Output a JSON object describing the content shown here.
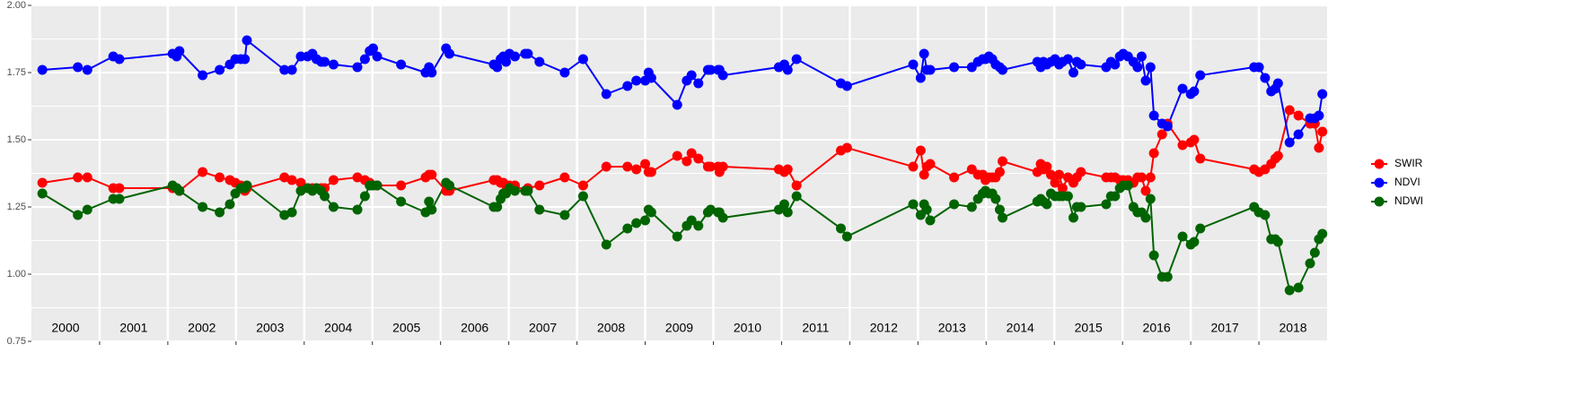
{
  "chart_data": {
    "type": "line",
    "xlim": [
      2000,
      2019
    ],
    "xticks": [
      2001,
      2002,
      2003,
      2004,
      2005,
      2006,
      2007,
      2008,
      2009,
      2010,
      2011,
      2012,
      2013,
      2014,
      2015,
      2016,
      2017,
      2018
    ],
    "ylim": [
      0.75,
      2.0
    ],
    "yticks": [
      {
        "value": 0.75,
        "label": "0.75"
      },
      {
        "value": 1.0,
        "label": "1.00"
      },
      {
        "value": 1.25,
        "label": "1.25"
      },
      {
        "value": 1.5,
        "label": "1.50"
      },
      {
        "value": 1.75,
        "label": "1.75"
      },
      {
        "value": 2.0,
        "label": "2.00"
      }
    ],
    "grid": true,
    "legend": "right",
    "annotations": [
      {
        "text": "2000",
        "x": 2000.5
      },
      {
        "text": "2001",
        "x": 2001.5
      },
      {
        "text": "2002",
        "x": 2002.5
      },
      {
        "text": "2003",
        "x": 2003.5
      },
      {
        "text": "2004",
        "x": 2004.5
      },
      {
        "text": "2005",
        "x": 2005.5
      },
      {
        "text": "2006",
        "x": 2006.5
      },
      {
        "text": "2007",
        "x": 2007.5
      },
      {
        "text": "2008",
        "x": 2008.5
      },
      {
        "text": "2009",
        "x": 2009.5
      },
      {
        "text": "2010",
        "x": 2010.5
      },
      {
        "text": "2011",
        "x": 2011.5
      },
      {
        "text": "2012",
        "x": 2012.5
      },
      {
        "text": "2013",
        "x": 2013.5
      },
      {
        "text": "2014",
        "x": 2014.5
      },
      {
        "text": "2015",
        "x": 2015.5
      },
      {
        "text": "2016",
        "x": 2016.5
      },
      {
        "text": "2017",
        "x": 2017.5
      },
      {
        "text": "2018",
        "x": 2018.5
      }
    ],
    "x": [
      2000.16,
      2000.68,
      2000.82,
      2001.2,
      2001.29,
      2002.07,
      2002.13,
      2002.17,
      2002.51,
      2002.76,
      2002.91,
      2002.99,
      2003.07,
      2003.13,
      2003.16,
      2003.71,
      2003.82,
      2003.95,
      2004.05,
      2004.12,
      2004.18,
      2004.25,
      2004.3,
      2004.43,
      2004.78,
      2004.89,
      2004.96,
      2005.01,
      2005.07,
      2005.42,
      2005.78,
      2005.83,
      2005.87,
      2006.08,
      2006.13,
      2006.78,
      2006.83,
      2006.88,
      2006.92,
      2006.96,
      2007.01,
      2007.09,
      2007.24,
      2007.28,
      2007.45,
      2007.82,
      2008.09,
      2008.43,
      2008.74,
      2008.87,
      2009.0,
      2009.05,
      2009.09,
      2009.47,
      2009.61,
      2009.68,
      2009.78,
      2009.92,
      2009.96,
      2010.07,
      2010.09,
      2010.14,
      2010.96,
      2011.04,
      2011.09,
      2011.22,
      2011.87,
      2011.96,
      2012.93,
      2013.04,
      2013.09,
      2013.13,
      2013.18,
      2013.53,
      2013.79,
      2013.88,
      2013.95,
      2013.99,
      2014.04,
      2014.09,
      2014.14,
      2014.2,
      2014.24,
      2014.75,
      2014.8,
      2014.84,
      2014.89,
      2014.95,
      2015.01,
      2015.07,
      2015.12,
      2015.2,
      2015.28,
      2015.33,
      2015.39,
      2015.76,
      2015.83,
      2015.89,
      2015.96,
      2016.01,
      2016.08,
      2016.16,
      2016.22,
      2016.28,
      2016.34,
      2016.41,
      2016.46,
      2016.58,
      2016.66,
      2016.88,
      2017.0,
      2017.05,
      2017.14,
      2017.93,
      2018.0,
      2018.09,
      2018.18,
      2018.24,
      2018.28,
      2018.45,
      2018.58,
      2018.75,
      2018.82,
      2018.88,
      2018.93
    ],
    "series": [
      {
        "name": "SWIR",
        "color": "#ff0000",
        "values": [
          1.34,
          1.36,
          1.36,
          1.32,
          1.32,
          1.32,
          1.32,
          1.31,
          1.38,
          1.36,
          1.35,
          1.34,
          1.33,
          1.31,
          1.32,
          1.36,
          1.35,
          1.34,
          1.32,
          1.32,
          1.32,
          1.32,
          1.32,
          1.35,
          1.36,
          1.35,
          1.34,
          1.33,
          1.33,
          1.33,
          1.36,
          1.37,
          1.37,
          1.31,
          1.31,
          1.35,
          1.35,
          1.34,
          1.34,
          1.33,
          1.33,
          1.33,
          1.31,
          1.32,
          1.33,
          1.36,
          1.33,
          1.4,
          1.4,
          1.39,
          1.41,
          1.38,
          1.38,
          1.44,
          1.42,
          1.45,
          1.43,
          1.4,
          1.4,
          1.4,
          1.38,
          1.4,
          1.39,
          1.38,
          1.39,
          1.33,
          1.46,
          1.47,
          1.4,
          1.46,
          1.37,
          1.4,
          1.41,
          1.36,
          1.39,
          1.37,
          1.37,
          1.35,
          1.36,
          1.36,
          1.36,
          1.38,
          1.42,
          1.38,
          1.41,
          1.39,
          1.4,
          1.37,
          1.34,
          1.37,
          1.32,
          1.36,
          1.34,
          1.36,
          1.38,
          1.36,
          1.36,
          1.36,
          1.35,
          1.35,
          1.35,
          1.34,
          1.36,
          1.36,
          1.31,
          1.36,
          1.45,
          1.52,
          1.56,
          1.48,
          1.49,
          1.5,
          1.43,
          1.39,
          1.38,
          1.39,
          1.41,
          1.43,
          1.44,
          1.61,
          1.59,
          1.56,
          1.56,
          1.47,
          1.53
        ]
      },
      {
        "name": "NDVI",
        "color": "#0000ff",
        "values": [
          1.76,
          1.77,
          1.76,
          1.81,
          1.8,
          1.82,
          1.81,
          1.83,
          1.74,
          1.76,
          1.78,
          1.8,
          1.8,
          1.8,
          1.87,
          1.76,
          1.76,
          1.81,
          1.81,
          1.82,
          1.8,
          1.79,
          1.79,
          1.78,
          1.77,
          1.8,
          1.83,
          1.84,
          1.81,
          1.78,
          1.75,
          1.77,
          1.75,
          1.84,
          1.82,
          1.78,
          1.77,
          1.8,
          1.81,
          1.79,
          1.82,
          1.81,
          1.82,
          1.82,
          1.79,
          1.75,
          1.8,
          1.67,
          1.7,
          1.72,
          1.72,
          1.75,
          1.73,
          1.63,
          1.72,
          1.74,
          1.71,
          1.76,
          1.76,
          1.76,
          1.76,
          1.74,
          1.77,
          1.78,
          1.76,
          1.8,
          1.71,
          1.7,
          1.78,
          1.73,
          1.82,
          1.76,
          1.76,
          1.77,
          1.77,
          1.79,
          1.8,
          1.8,
          1.81,
          1.8,
          1.78,
          1.77,
          1.76,
          1.79,
          1.77,
          1.79,
          1.78,
          1.79,
          1.8,
          1.78,
          1.79,
          1.8,
          1.75,
          1.79,
          1.78,
          1.77,
          1.79,
          1.78,
          1.81,
          1.82,
          1.81,
          1.79,
          1.77,
          1.81,
          1.72,
          1.77,
          1.59,
          1.56,
          1.55,
          1.69,
          1.67,
          1.68,
          1.74,
          1.77,
          1.77,
          1.73,
          1.68,
          1.69,
          1.71,
          1.49,
          1.52,
          1.58,
          1.58,
          1.59,
          1.67
        ]
      },
      {
        "name": "NDWI",
        "color": "#006400",
        "values": [
          1.3,
          1.22,
          1.24,
          1.28,
          1.28,
          1.33,
          1.32,
          1.31,
          1.25,
          1.23,
          1.26,
          1.3,
          1.32,
          1.32,
          1.33,
          1.22,
          1.23,
          1.31,
          1.32,
          1.31,
          1.32,
          1.31,
          1.29,
          1.25,
          1.24,
          1.29,
          1.33,
          1.33,
          1.33,
          1.27,
          1.23,
          1.27,
          1.24,
          1.34,
          1.33,
          1.25,
          1.25,
          1.28,
          1.3,
          1.3,
          1.32,
          1.31,
          1.31,
          1.31,
          1.24,
          1.22,
          1.29,
          1.11,
          1.17,
          1.19,
          1.2,
          1.24,
          1.23,
          1.14,
          1.18,
          1.2,
          1.18,
          1.23,
          1.24,
          1.23,
          1.23,
          1.21,
          1.24,
          1.26,
          1.23,
          1.29,
          1.17,
          1.14,
          1.26,
          1.22,
          1.26,
          1.24,
          1.2,
          1.26,
          1.25,
          1.28,
          1.3,
          1.31,
          1.3,
          1.3,
          1.28,
          1.24,
          1.21,
          1.27,
          1.28,
          1.27,
          1.26,
          1.3,
          1.29,
          1.29,
          1.29,
          1.29,
          1.21,
          1.25,
          1.25,
          1.26,
          1.29,
          1.29,
          1.32,
          1.33,
          1.33,
          1.25,
          1.23,
          1.23,
          1.21,
          1.28,
          1.07,
          0.99,
          0.99,
          1.14,
          1.11,
          1.12,
          1.17,
          1.25,
          1.23,
          1.22,
          1.13,
          1.13,
          1.12,
          0.94,
          0.95,
          1.04,
          1.08,
          1.13,
          1.15
        ]
      }
    ]
  }
}
